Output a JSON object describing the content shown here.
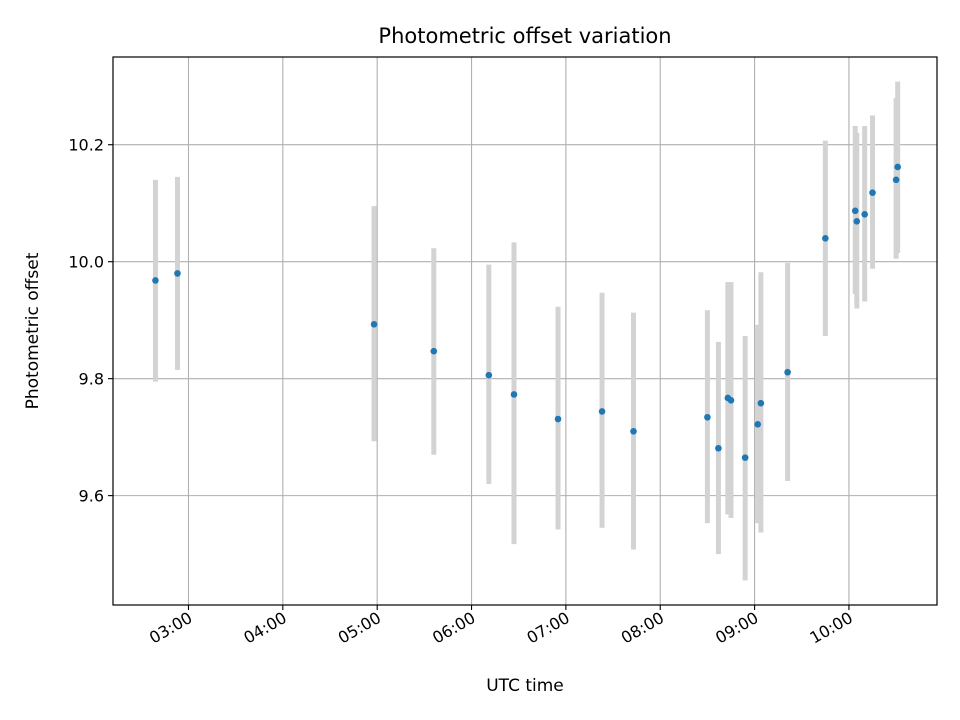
{
  "chart_data": {
    "type": "scatter",
    "title": "Photometric offset variation",
    "xlabel": "UTC time",
    "ylabel": "Photometric offset",
    "x_unit": "time of day (UTC, HH:MM)",
    "xlim": [
      "02:12",
      "10:56"
    ],
    "ylim": [
      9.413,
      10.35
    ],
    "x_ticks": [
      "03:00",
      "04:00",
      "05:00",
      "06:00",
      "07:00",
      "08:00",
      "09:00",
      "10:00"
    ],
    "y_ticks": [
      "9.6",
      "9.8",
      "10.0",
      "10.2"
    ],
    "grid": true,
    "marker_color": "#1f77b4",
    "errorbar_color": "#d3d3d3",
    "points": [
      {
        "x": "02:39",
        "y": 9.968,
        "low": 9.795,
        "high": 10.14
      },
      {
        "x": "02:53",
        "y": 9.98,
        "low": 9.815,
        "high": 10.145
      },
      {
        "x": "04:58",
        "y": 9.893,
        "low": 9.693,
        "high": 10.095
      },
      {
        "x": "05:36",
        "y": 9.847,
        "low": 9.67,
        "high": 10.023
      },
      {
        "x": "06:11",
        "y": 9.806,
        "low": 9.62,
        "high": 9.995
      },
      {
        "x": "06:27",
        "y": 9.773,
        "low": 9.517,
        "high": 10.033
      },
      {
        "x": "06:55",
        "y": 9.731,
        "low": 9.542,
        "high": 9.923
      },
      {
        "x": "07:23",
        "y": 9.744,
        "low": 9.545,
        "high": 9.947
      },
      {
        "x": "07:43",
        "y": 9.71,
        "low": 9.508,
        "high": 9.913
      },
      {
        "x": "08:30",
        "y": 9.734,
        "low": 9.553,
        "high": 9.917
      },
      {
        "x": "08:37",
        "y": 9.681,
        "low": 9.5,
        "high": 9.863
      },
      {
        "x": "08:43",
        "y": 9.767,
        "low": 9.568,
        "high": 9.965
      },
      {
        "x": "08:45",
        "y": 9.763,
        "low": 9.562,
        "high": 9.965
      },
      {
        "x": "08:54",
        "y": 9.665,
        "low": 9.455,
        "high": 9.873
      },
      {
        "x": "09:02",
        "y": 9.722,
        "low": 9.553,
        "high": 9.892
      },
      {
        "x": "09:04",
        "y": 9.758,
        "low": 9.537,
        "high": 9.982
      },
      {
        "x": "09:21",
        "y": 9.811,
        "low": 9.625,
        "high": 9.998
      },
      {
        "x": "09:45",
        "y": 10.04,
        "low": 9.873,
        "high": 10.207
      },
      {
        "x": "10:04",
        "y": 10.087,
        "low": 9.945,
        "high": 10.232
      },
      {
        "x": "10:05",
        "y": 10.069,
        "low": 9.92,
        "high": 10.22
      },
      {
        "x": "10:10",
        "y": 10.081,
        "low": 9.932,
        "high": 10.232
      },
      {
        "x": "10:15",
        "y": 10.118,
        "low": 9.988,
        "high": 10.25
      },
      {
        "x": "10:30",
        "y": 10.14,
        "low": 10.005,
        "high": 10.28
      },
      {
        "x": "10:31",
        "y": 10.162,
        "low": 10.015,
        "high": 10.308
      }
    ]
  }
}
